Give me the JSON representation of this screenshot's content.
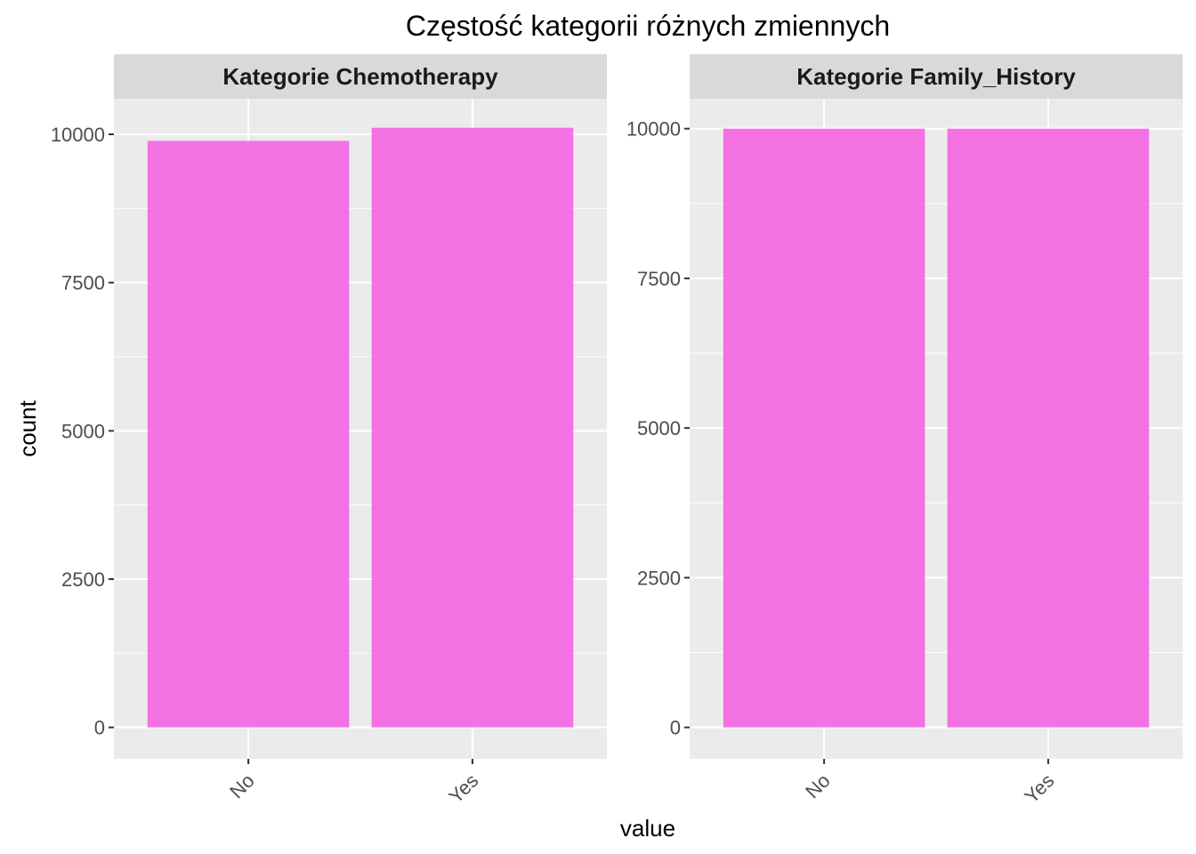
{
  "chart_data": {
    "type": "bar",
    "title": "Częstość kategorii różnych zmiennych",
    "xlabel": "value",
    "ylabel": "count",
    "bar_color": "#F564E3",
    "panel_bg": "#EBEBEB",
    "strip_bg": "#D9D9D9",
    "panels": [
      {
        "strip_label": "Kategorie Chemotherapy",
        "categories": [
          "No",
          "Yes"
        ],
        "values": [
          9890,
          10110
        ],
        "ylim": [
          0,
          10600
        ],
        "yticks": [
          0,
          2500,
          5000,
          7500,
          10000
        ],
        "ytick_labels": [
          "0",
          "2500",
          "5000",
          "7500",
          "10000"
        ]
      },
      {
        "strip_label": "Kategorie Family_History",
        "categories": [
          "No",
          "Yes"
        ],
        "values": [
          10000,
          10000
        ],
        "ylim": [
          0,
          10500
        ],
        "yticks": [
          0,
          2500,
          5000,
          7500,
          10000
        ],
        "ytick_labels": [
          "0",
          "2500",
          "5000",
          "7500",
          "10000"
        ]
      }
    ]
  }
}
